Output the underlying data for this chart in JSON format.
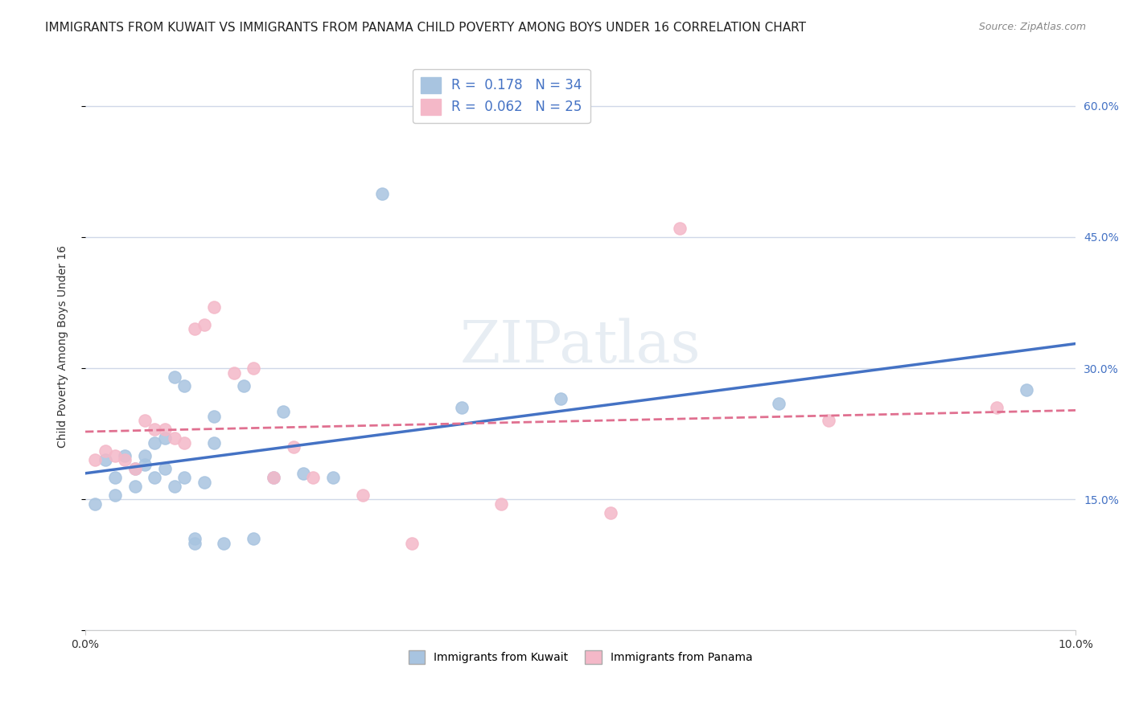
{
  "title": "IMMIGRANTS FROM KUWAIT VS IMMIGRANTS FROM PANAMA CHILD POVERTY AMONG BOYS UNDER 16 CORRELATION CHART",
  "source": "Source: ZipAtlas.com",
  "xlabel": "",
  "ylabel": "Child Poverty Among Boys Under 16",
  "xlim": [
    0.0,
    0.1
  ],
  "ylim": [
    0.0,
    0.65
  ],
  "xticks": [
    0.0,
    0.02,
    0.04,
    0.06,
    0.08,
    0.1
  ],
  "xtick_labels": [
    "0.0%",
    "",
    "",
    "",
    "",
    "10.0%"
  ],
  "yticks_left": [
    0.0,
    0.15,
    0.3,
    0.45,
    0.6
  ],
  "ytick_labels_left": [
    "",
    "",
    "",
    "",
    ""
  ],
  "yticks_right": [
    0.15,
    0.3,
    0.45,
    0.6
  ],
  "ytick_labels_right": [
    "15.0%",
    "30.0%",
    "45.0%",
    "60.0%"
  ],
  "watermark": "ZIPatlas",
  "kuwait_color": "#a8c4e0",
  "panama_color": "#f4b8c8",
  "kuwait_line_color": "#4472c4",
  "panama_line_color": "#e07090",
  "kuwait_R": 0.178,
  "kuwait_N": 34,
  "panama_R": 0.062,
  "panama_N": 25,
  "kuwait_scatter_x": [
    0.001,
    0.002,
    0.003,
    0.003,
    0.004,
    0.005,
    0.005,
    0.006,
    0.006,
    0.007,
    0.007,
    0.008,
    0.008,
    0.009,
    0.009,
    0.01,
    0.01,
    0.011,
    0.011,
    0.012,
    0.013,
    0.013,
    0.014,
    0.016,
    0.017,
    0.019,
    0.02,
    0.022,
    0.025,
    0.03,
    0.038,
    0.048,
    0.07,
    0.095
  ],
  "kuwait_scatter_y": [
    0.145,
    0.195,
    0.175,
    0.155,
    0.2,
    0.185,
    0.165,
    0.2,
    0.19,
    0.215,
    0.175,
    0.22,
    0.185,
    0.165,
    0.29,
    0.28,
    0.175,
    0.105,
    0.1,
    0.17,
    0.245,
    0.215,
    0.1,
    0.28,
    0.105,
    0.175,
    0.25,
    0.18,
    0.175,
    0.5,
    0.255,
    0.265,
    0.26,
    0.275
  ],
  "panama_scatter_x": [
    0.001,
    0.002,
    0.003,
    0.004,
    0.005,
    0.006,
    0.007,
    0.008,
    0.009,
    0.01,
    0.011,
    0.012,
    0.013,
    0.015,
    0.017,
    0.019,
    0.021,
    0.023,
    0.028,
    0.033,
    0.042,
    0.053,
    0.06,
    0.075,
    0.092
  ],
  "panama_scatter_y": [
    0.195,
    0.205,
    0.2,
    0.195,
    0.185,
    0.24,
    0.23,
    0.23,
    0.22,
    0.215,
    0.345,
    0.35,
    0.37,
    0.295,
    0.3,
    0.175,
    0.21,
    0.175,
    0.155,
    0.1,
    0.145,
    0.135,
    0.46,
    0.24,
    0.255
  ],
  "background_color": "#ffffff",
  "grid_color": "#d0d8e8",
  "title_fontsize": 11,
  "label_fontsize": 10
}
